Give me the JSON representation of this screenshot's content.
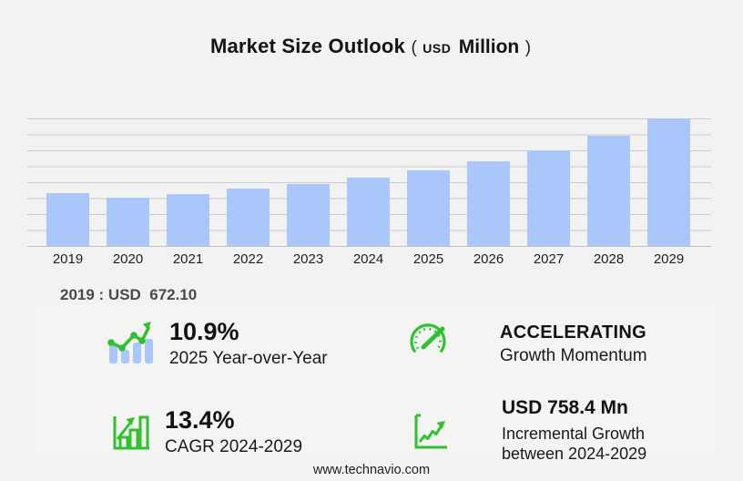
{
  "title": {
    "main": "Market Size Outlook",
    "open_paren": "(",
    "currency": "USD",
    "unit": "Million",
    "close_paren": ")"
  },
  "chart_data": {
    "type": "bar",
    "title": "Market Size Outlook (USD Million)",
    "unit": "USD Million",
    "categories": [
      "2019",
      "2020",
      "2021",
      "2022",
      "2023",
      "2024",
      "2025",
      "2026",
      "2027",
      "2028",
      "2029"
    ],
    "values": [
      672.1,
      614,
      660,
      731,
      789,
      866,
      960,
      1081,
      1222,
      1409,
      1624
    ],
    "ylim": [
      0,
      1624
    ],
    "grid": true,
    "gridline_count": 9,
    "legend": "none",
    "bar_color": "#a9c7fa",
    "gridline_color": "#cbcbcb",
    "annotation": "2019 : USD  672.10"
  },
  "stats": {
    "yoy": {
      "icon": "trend-bars-icon",
      "value": "10.9%",
      "label": "2025 Year-over-Year"
    },
    "momentum": {
      "icon": "gauge-icon",
      "value": "ACCELERATING",
      "label": "Growth Momentum"
    },
    "cagr": {
      "icon": "bar-growth-icon",
      "value": "13.4%",
      "label": "CAGR 2024-2029"
    },
    "incremental": {
      "icon": "line-growth-icon",
      "value": "USD 758.4 Mn",
      "label_line1": "Incremental Growth",
      "label_line2": "between 2024-2029"
    }
  },
  "footer": {
    "website": "www.technavio.com"
  },
  "colors": {
    "background": "#f2f2f3",
    "panel": "#f4f4f2",
    "bar_blue": "#a9c7fa",
    "accent_green": "#2fc12f",
    "gridline": "#cbcbcb"
  }
}
